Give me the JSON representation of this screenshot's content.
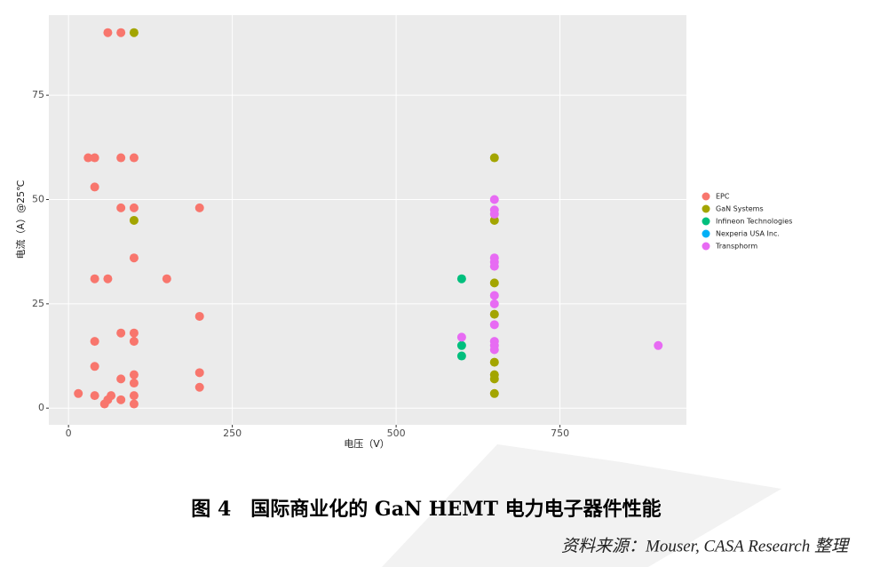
{
  "chart_data": {
    "type": "scatter",
    "x_label": "电压（V）",
    "y_label": "电流（A）@25℃",
    "caption": "图 4　国际商业化的 GaN HEMT 电力电子器件性能",
    "source": "资料来源：Mouser, CASA Research 整理",
    "xlim": [
      -30,
      943
    ],
    "ylim": [
      -4,
      94.2
    ],
    "xticks": [
      0,
      250,
      500,
      750
    ],
    "yticks": [
      0,
      25,
      50,
      75
    ],
    "grid": true,
    "legend": "right",
    "series": [
      {
        "name": "EPC",
        "color": "#F8766D",
        "x": [
          60,
          80,
          30,
          40,
          80,
          100,
          40,
          80,
          100,
          200,
          100,
          40,
          60,
          150,
          200,
          80,
          100,
          40,
          100,
          40,
          100,
          200,
          80,
          100,
          200,
          15,
          40,
          65,
          100,
          60,
          80,
          100,
          55
        ],
        "values": [
          90,
          90,
          60,
          60,
          60,
          60,
          53,
          48,
          48,
          48,
          36,
          31,
          31,
          31,
          22,
          18,
          18,
          16,
          16,
          10,
          8,
          8.5,
          7,
          6,
          5,
          3.5,
          3,
          3,
          3,
          2,
          2,
          1,
          1
        ]
      },
      {
        "name": "GaN Systems",
        "color": "#A3A500",
        "x": [
          100,
          100,
          650,
          650,
          650,
          650,
          650,
          650,
          650,
          650
        ],
        "values": [
          90,
          45,
          60,
          45,
          30,
          22.5,
          11,
          8,
          7,
          3.5
        ]
      },
      {
        "name": "Infineon Technologies",
        "color": "#00BF7D",
        "x": [
          600,
          600,
          600
        ],
        "values": [
          31,
          15,
          12.5
        ]
      },
      {
        "name": "Nexperia USA Inc.",
        "color": "#00B0F6",
        "x": [],
        "values": []
      },
      {
        "name": "Transphorm",
        "color": "#E76BF3",
        "x": [
          650,
          650,
          650,
          650,
          650,
          650,
          650,
          650,
          650,
          650,
          650,
          650,
          600,
          900
        ],
        "values": [
          50,
          47.5,
          46.5,
          36,
          35,
          34,
          27,
          25,
          20,
          16,
          15,
          14,
          17,
          15
        ]
      }
    ]
  }
}
